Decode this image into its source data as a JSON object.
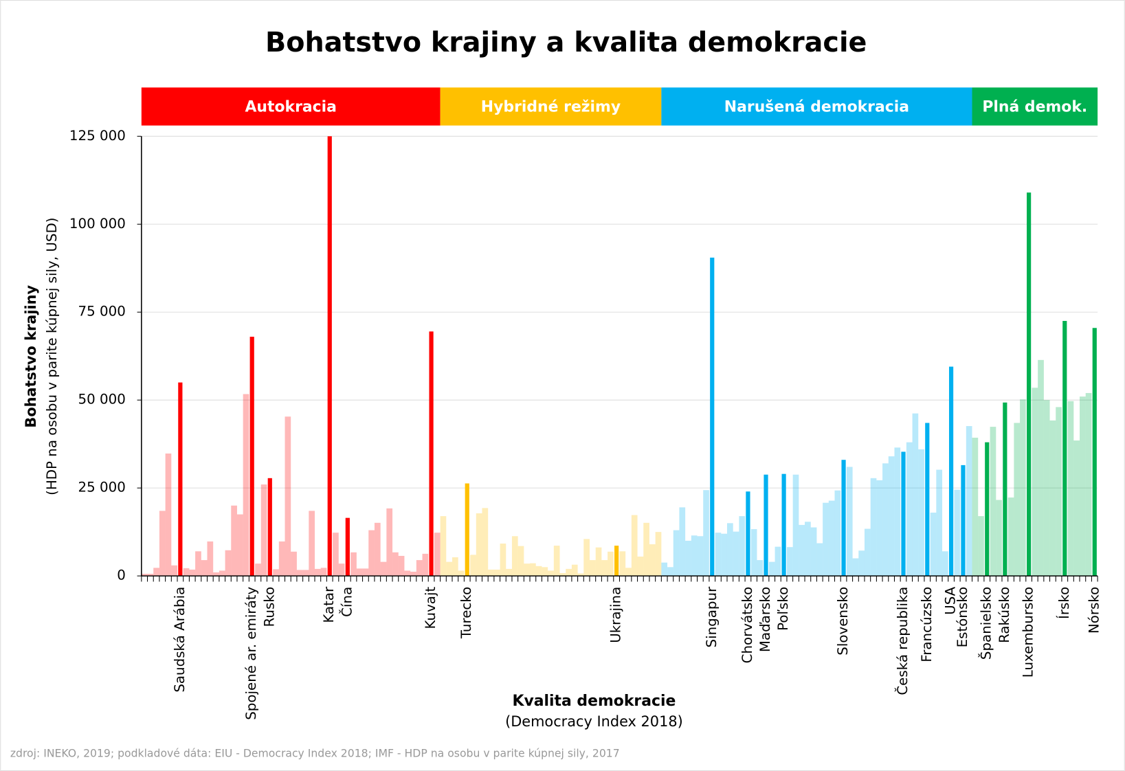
{
  "chart_data": {
    "type": "bar",
    "title": "Bohatstvo krajiny a kvalita demokracie",
    "xlabel": "Kvalita demokracie",
    "xlabel_note": "(Democracy Index 2018)",
    "ylabel": "Bohatstvo krajiny",
    "ylabel_note": "(HDP na osobu v parite kúpnej sily, USD)",
    "source": "zdroj: INEKO, 2019; podkladové dáta: EIU - Democracy Index 2018; IMF - HDP na osobu v parite kúpnej sily, 2017",
    "ylim": [
      0,
      125000
    ],
    "yticks": [
      0,
      {
        "value": 25000,
        "label": "25 000"
      },
      {
        "value": 50000,
        "label": "50 000"
      },
      {
        "value": 75000,
        "label": "75 000"
      },
      {
        "value": 100000,
        "label": "100 000"
      },
      {
        "value": 125000,
        "label": "125 000"
      }
    ],
    "grid": true,
    "categories": [
      null,
      null,
      null,
      null,
      null,
      null,
      "Saudská Arábia",
      null,
      null,
      null,
      null,
      null,
      null,
      null,
      null,
      null,
      null,
      null,
      "Spojené ar. emiráty",
      null,
      null,
      "Rusko",
      null,
      null,
      null,
      null,
      null,
      null,
      null,
      null,
      null,
      "Katar",
      null,
      null,
      "Čína",
      null,
      null,
      null,
      null,
      null,
      null,
      null,
      null,
      null,
      null,
      null,
      null,
      null,
      "Kuvajt",
      null,
      null,
      null,
      null,
      null,
      "Turecko",
      null,
      null,
      null,
      null,
      null,
      null,
      null,
      null,
      null,
      null,
      null,
      null,
      null,
      null,
      null,
      null,
      null,
      null,
      null,
      null,
      null,
      null,
      null,
      null,
      "Ukrajina",
      null,
      null,
      null,
      null,
      null,
      null,
      null,
      null,
      null,
      null,
      null,
      null,
      null,
      null,
      null,
      "Singapur",
      null,
      null,
      null,
      null,
      null,
      "Chorvátsko",
      null,
      null,
      "Maďarsko",
      null,
      null,
      "Poľsko",
      null,
      null,
      null,
      null,
      null,
      null,
      null,
      null,
      null,
      "Slovensko",
      null,
      null,
      null,
      null,
      null,
      null,
      null,
      null,
      null,
      "Česká republika",
      null,
      null,
      null,
      "Francúzsko",
      null,
      null,
      null,
      "USA",
      null,
      "Estónsko",
      null,
      null,
      null,
      "Španielsko",
      null,
      null,
      "Rakúsko",
      null,
      null,
      null,
      "Luxembursko",
      null,
      null,
      null,
      null,
      null,
      "Írsko",
      null,
      null,
      null,
      null,
      "Nórsko"
    ],
    "series": [
      {
        "name": "Autokracia",
        "color": "#ff0000",
        "values": [
          600,
          600,
          2300,
          18500,
          34800,
          3000,
          55000,
          2200,
          1800,
          7000,
          4500,
          9800,
          1000,
          1500,
          7300,
          20000,
          17500,
          51700,
          68000,
          3500,
          26000,
          27800,
          1900,
          9800,
          45300,
          6900,
          1700,
          1700,
          18500,
          2000,
          2300,
          125000,
          12300,
          3500,
          16500,
          6700,
          2100,
          2100,
          13000,
          15100,
          4000,
          19200,
          6700,
          5700,
          1500,
          1200,
          4500,
          6300,
          69500,
          12300,
          null,
          null,
          null,
          null,
          null,
          null,
          null,
          null,
          null,
          null,
          null,
          null,
          null,
          null,
          null,
          null,
          null,
          null,
          null,
          null,
          null,
          null,
          null,
          null,
          null,
          null,
          null,
          null,
          null,
          null,
          null,
          null,
          null,
          null,
          null,
          null,
          null,
          null,
          null,
          null,
          null,
          null,
          null,
          null,
          null,
          null,
          null,
          null,
          null,
          null,
          null,
          null,
          null,
          null,
          null,
          null,
          null,
          null,
          null,
          null,
          null,
          null,
          null,
          null,
          null,
          null,
          null,
          null,
          null,
          null,
          null,
          null,
          null,
          null,
          null,
          null,
          null,
          null,
          null,
          null,
          null,
          null,
          null,
          null,
          null,
          null,
          null,
          null,
          null,
          null,
          null,
          null,
          null,
          null,
          null,
          null,
          null,
          null,
          null,
          null,
          null,
          null,
          null,
          null,
          null,
          null,
          null,
          null,
          null,
          null
        ]
      },
      {
        "name": "Hybridné režimy",
        "color": "#ffc000",
        "values": [
          null,
          null,
          null,
          null,
          null,
          null,
          null,
          null,
          null,
          null,
          null,
          null,
          null,
          null,
          null,
          null,
          null,
          null,
          null,
          null,
          null,
          null,
          null,
          null,
          null,
          null,
          null,
          null,
          null,
          null,
          null,
          null,
          null,
          null,
          null,
          null,
          null,
          null,
          null,
          null,
          null,
          null,
          null,
          null,
          null,
          null,
          null,
          null,
          null,
          null,
          17000,
          4000,
          5300,
          1500,
          26300,
          6000,
          17800,
          19300,
          1800,
          1800,
          9200,
          2000,
          11300,
          8500,
          3500,
          3600,
          2800,
          2500,
          1500,
          8600,
          800,
          2000,
          3200,
          700,
          10500,
          4500,
          8100,
          4500,
          6900,
          8600,
          7000,
          2300,
          17300,
          5500,
          15100,
          9000,
          12500,
          null,
          null,
          null,
          null,
          null,
          null,
          null,
          null,
          null,
          null,
          null,
          null,
          null,
          null,
          null,
          null,
          null,
          null,
          null,
          null,
          null,
          null,
          null,
          null,
          null,
          null,
          null,
          null,
          null,
          null,
          null,
          null,
          null,
          null,
          null,
          null,
          null,
          null,
          null,
          null,
          null,
          null,
          null,
          null,
          null,
          null,
          null,
          null,
          null,
          null,
          null,
          null,
          null,
          null,
          null,
          null,
          null,
          null,
          null,
          null,
          null,
          null,
          null,
          null,
          null,
          null,
          null,
          null,
          null,
          null,
          null,
          null,
          null
        ]
      },
      {
        "name": "Narušená demokracia",
        "color": "#00b0f0",
        "values": [
          null,
          null,
          null,
          null,
          null,
          null,
          null,
          null,
          null,
          null,
          null,
          null,
          null,
          null,
          null,
          null,
          null,
          null,
          null,
          null,
          null,
          null,
          null,
          null,
          null,
          null,
          null,
          null,
          null,
          null,
          null,
          null,
          null,
          null,
          null,
          null,
          null,
          null,
          null,
          null,
          null,
          null,
          null,
          null,
          null,
          null,
          null,
          null,
          null,
          null,
          null,
          null,
          null,
          null,
          null,
          null,
          null,
          null,
          null,
          null,
          null,
          null,
          null,
          null,
          null,
          null,
          null,
          null,
          null,
          null,
          null,
          null,
          null,
          null,
          null,
          null,
          null,
          null,
          null,
          null,
          null,
          null,
          null,
          null,
          null,
          null,
          null,
          3800,
          2500,
          13000,
          19500,
          10000,
          11500,
          11300,
          24400,
          90500,
          12300,
          12000,
          15000,
          12600,
          17000,
          24000,
          13300,
          4500,
          28800,
          4000,
          8300,
          29000,
          8200,
          28800,
          14500,
          15400,
          13800,
          9300,
          20800,
          21400,
          24300,
          33000,
          31000,
          5000,
          7200,
          13400,
          27800,
          27200,
          32000,
          34000,
          36500,
          35300,
          38000,
          46200,
          36000,
          43500,
          18000,
          30200,
          7000,
          59500,
          24500,
          31500,
          42600,
          null,
          null,
          null,
          null,
          null,
          null,
          null,
          null,
          null,
          null,
          null,
          null,
          null,
          null,
          null,
          null,
          null,
          null,
          null,
          null,
          null
        ]
      },
      {
        "name": "Plná demok.",
        "color": "#00b050",
        "values": [
          null,
          null,
          null,
          null,
          null,
          null,
          null,
          null,
          null,
          null,
          null,
          null,
          null,
          null,
          null,
          null,
          null,
          null,
          null,
          null,
          null,
          null,
          null,
          null,
          null,
          null,
          null,
          null,
          null,
          null,
          null,
          null,
          null,
          null,
          null,
          null,
          null,
          null,
          null,
          null,
          null,
          null,
          null,
          null,
          null,
          null,
          null,
          null,
          null,
          null,
          null,
          null,
          null,
          null,
          null,
          null,
          null,
          null,
          null,
          null,
          null,
          null,
          null,
          null,
          null,
          null,
          null,
          null,
          null,
          null,
          null,
          null,
          null,
          null,
          null,
          null,
          null,
          null,
          null,
          null,
          null,
          null,
          null,
          null,
          null,
          null,
          null,
          null,
          null,
          null,
          null,
          null,
          null,
          null,
          null,
          null,
          null,
          null,
          null,
          null,
          null,
          null,
          null,
          null,
          null,
          null,
          null,
          null,
          null,
          null,
          null,
          null,
          null,
          null,
          null,
          null,
          null,
          null,
          null,
          null,
          null,
          null,
          null,
          null,
          null,
          null,
          null,
          null,
          null,
          null,
          null,
          null,
          null,
          null,
          null,
          null,
          null,
          null,
          null,
          39300,
          17000,
          38000,
          42400,
          21600,
          49300,
          22300,
          43500,
          50200,
          109000,
          53500,
          61400,
          50000,
          44200,
          48000,
          72500,
          49700,
          38500,
          51000,
          52000,
          70500
        ]
      }
    ]
  }
}
